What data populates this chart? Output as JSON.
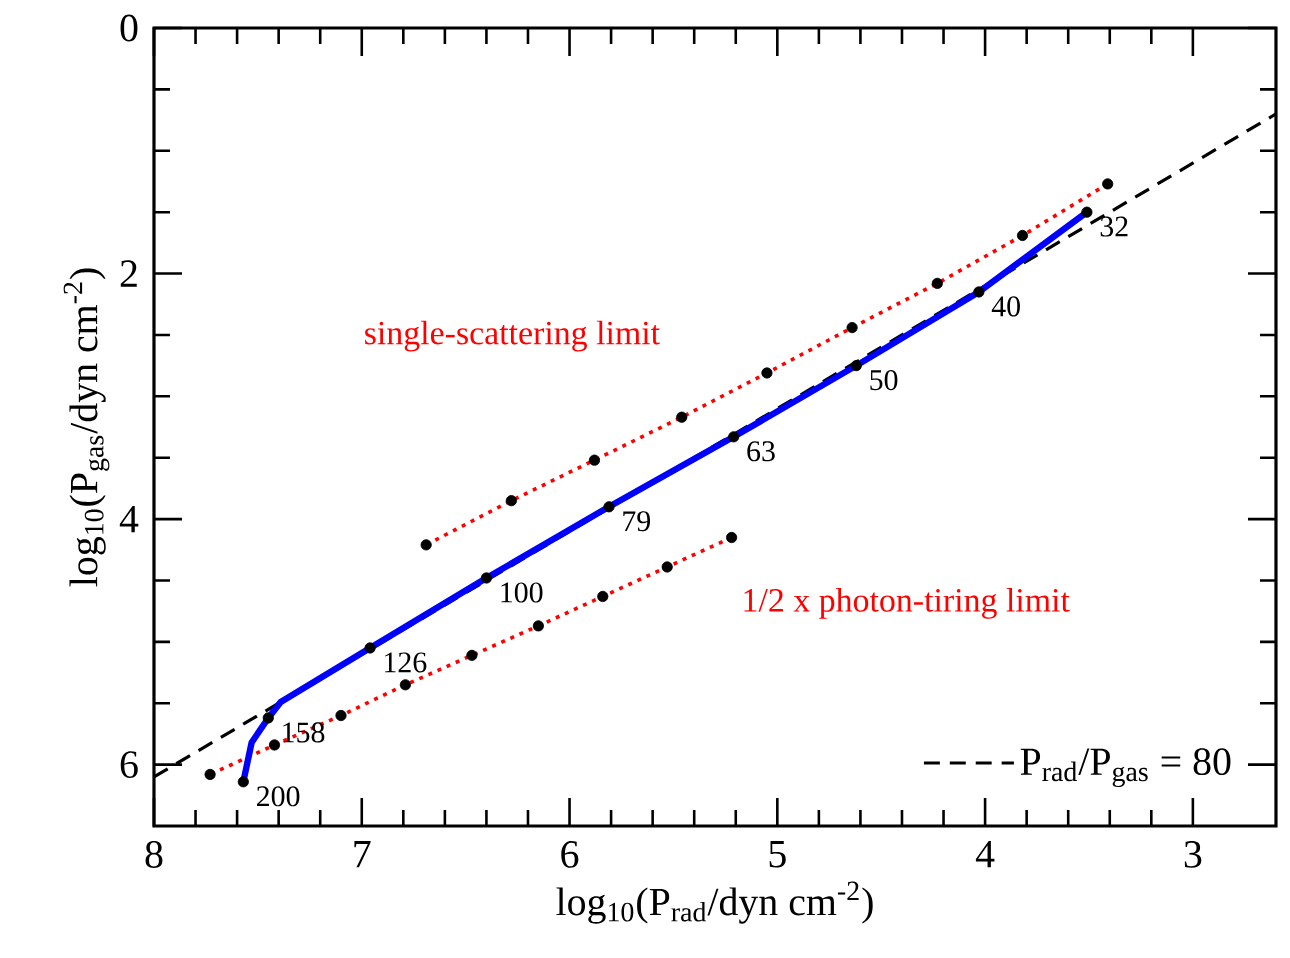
{
  "chart_data": {
    "type": "line",
    "xlabel": "log$_{10}$(P$_{rad}$/dyn cm$^{-2}$)",
    "ylabel": "log$_{10}$(P$_{gas}$/dyn cm$^{-2}$)",
    "xlim": [
      8,
      2.6
    ],
    "ylim": [
      6.5,
      0
    ],
    "xticks": [
      8,
      7,
      6,
      5,
      4,
      3
    ],
    "yticks": [
      0,
      2,
      4,
      6
    ],
    "legend": "bottom right",
    "series": [
      {
        "name": "P$_{rad}$/P$_{gas}$ = 80",
        "color": "#000000",
        "line_style": "dashed",
        "marker": "none",
        "x": [
          8,
          2.6
        ],
        "values": [
          6.1,
          0.7
        ]
      },
      {
        "color": "#ff0000",
        "line_style": "dotted",
        "marker": "none",
        "x": [
          3.41,
          3.82,
          4.23,
          4.64,
          5.05,
          5.46,
          5.88,
          6.28,
          6.69
        ],
        "values": [
          1.27,
          1.69,
          2.08,
          2.44,
          2.81,
          3.17,
          3.52,
          3.85,
          4.21
        ]
      },
      {
        "color": "#ff0000",
        "line_style": "dotted",
        "marker": "none",
        "x": [
          5.22,
          5.53,
          5.84,
          6.15,
          6.47,
          6.79,
          7.1,
          7.42,
          7.73
        ],
        "values": [
          4.15,
          4.39,
          4.63,
          4.87,
          5.11,
          5.35,
          5.6,
          5.84,
          6.08
        ]
      },
      {
        "color": "#0000ff",
        "line_style": "solid",
        "marker": "none",
        "x": [
          3.51,
          4.03,
          4.62,
          5.21,
          5.81,
          6.4,
          6.96,
          7.39,
          7.45,
          7.53,
          7.57
        ],
        "values": [
          1.5,
          2.15,
          2.75,
          3.33,
          3.9,
          4.48,
          5.05,
          5.49,
          5.62,
          5.82,
          6.14
        ]
      },
      {
        "type": "scatter",
        "color": "#000000",
        "marker": "circle",
        "x": [
          3.41,
          3.82,
          4.23,
          4.64,
          5.05,
          5.46,
          5.88,
          6.28,
          6.69,
          5.22,
          5.53,
          5.84,
          6.15,
          6.47,
          6.79,
          7.1,
          7.42,
          7.73,
          3.51,
          4.03,
          4.62,
          5.21,
          5.81,
          6.4,
          6.96,
          7.45,
          7.57
        ],
        "values": [
          1.27,
          1.69,
          2.08,
          2.44,
          2.81,
          3.17,
          3.52,
          3.85,
          4.21,
          4.15,
          4.39,
          4.63,
          4.87,
          5.11,
          5.35,
          5.6,
          5.84,
          6.08,
          1.5,
          2.15,
          2.75,
          3.33,
          3.9,
          4.48,
          5.05,
          5.62,
          6.14
        ]
      }
    ],
    "annotations": [
      "single-scattering limit",
      "1/2 x photon-tiring limit",
      {
        "text": "32",
        "x": 3.51,
        "y": 1.5
      },
      {
        "text": "40",
        "x": 4.03,
        "y": 2.15
      },
      {
        "text": "50",
        "x": 4.62,
        "y": 2.75
      },
      {
        "text": "63",
        "x": 5.21,
        "y": 3.33
      },
      {
        "text": "79",
        "x": 5.81,
        "y": 3.9
      },
      {
        "text": "100",
        "x": 6.4,
        "y": 4.48
      },
      {
        "text": "126",
        "x": 6.96,
        "y": 5.05
      },
      {
        "text": "158",
        "x": 7.45,
        "y": 5.62
      },
      {
        "text": "200",
        "x": 7.57,
        "y": 6.14
      }
    ]
  }
}
